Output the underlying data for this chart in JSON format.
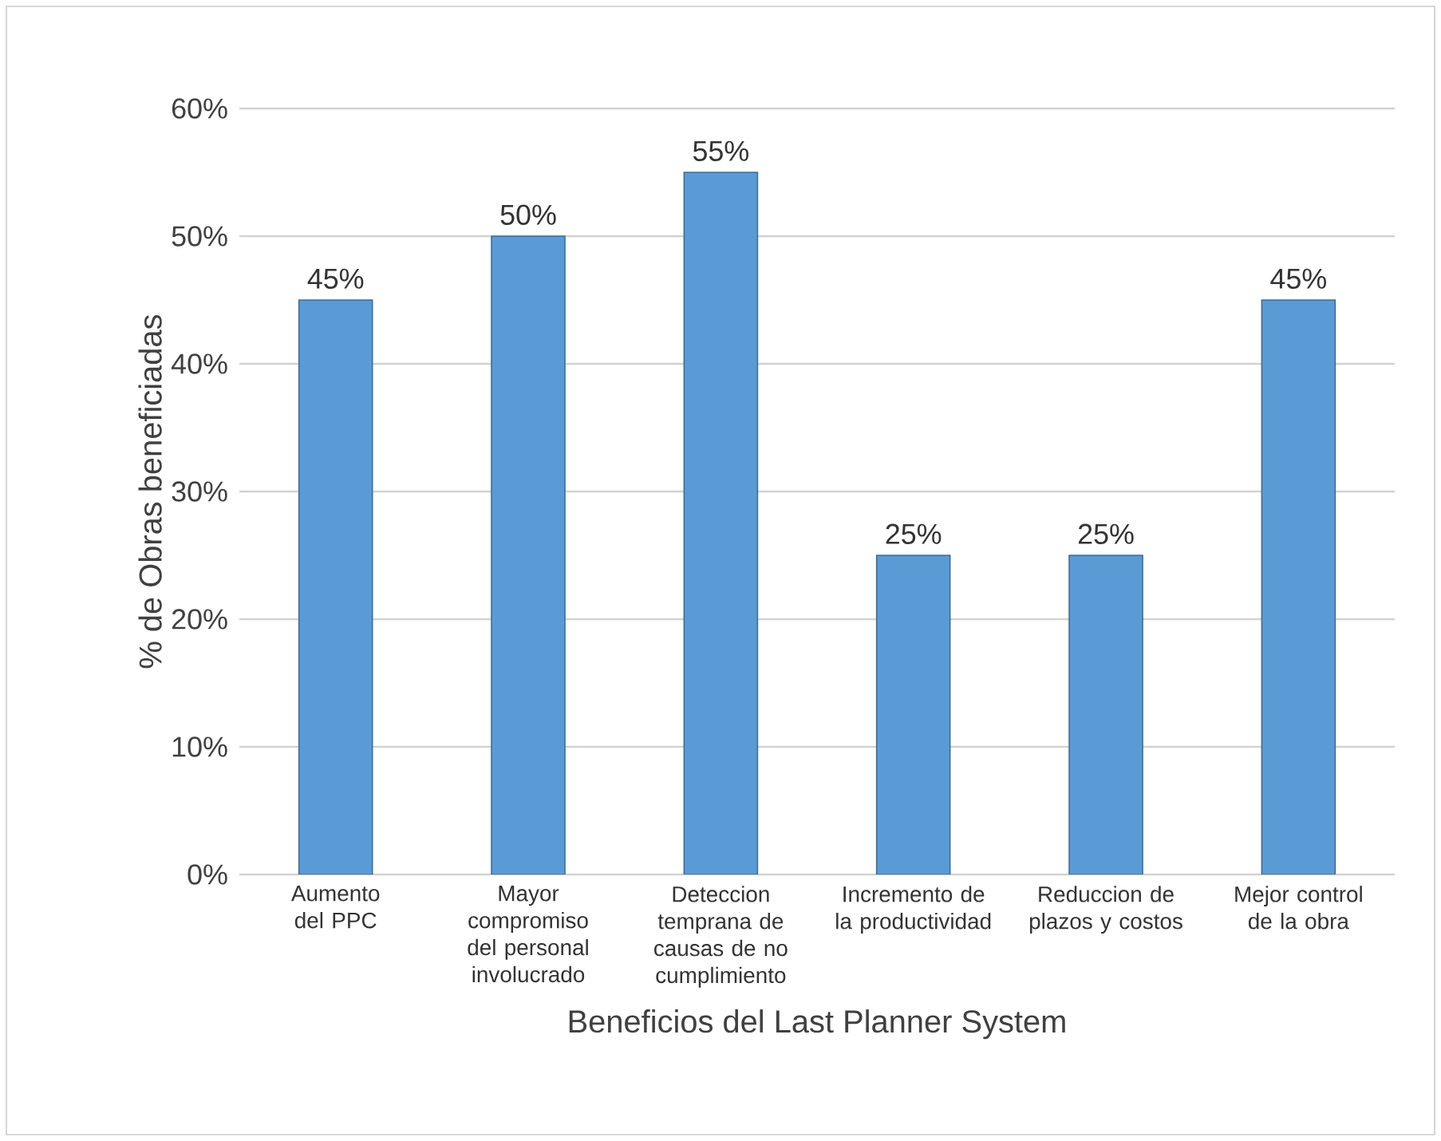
{
  "chart_data": {
    "type": "bar",
    "xlabel": "Beneficios del Last Planner System",
    "ylabel": "% de Obras beneficiadas",
    "categories": [
      "Aumento del PPC",
      "Mayor compromiso del personal involucrado",
      "Deteccion temprana de causas de no cumplimiento",
      "Incremento de la productividad",
      "Reduccion de plazos y costos",
      "Mejor control de la obra"
    ],
    "values": [
      45,
      50,
      55,
      25,
      25,
      45
    ],
    "value_labels": [
      "45%",
      "50%",
      "55%",
      "25%",
      "25%",
      "45%"
    ],
    "color": "#5b9bd5",
    "ylim": [
      0,
      60
    ],
    "yticks": [
      {
        "value": 0,
        "label": "0%"
      },
      {
        "value": 10,
        "label": "10%"
      },
      {
        "value": 20,
        "label": "20%"
      },
      {
        "value": 30,
        "label": "30%"
      },
      {
        "value": 40,
        "label": "40%"
      },
      {
        "value": 50,
        "label": "50%"
      },
      {
        "value": 60,
        "label": "60%"
      }
    ],
    "grid": "y"
  }
}
